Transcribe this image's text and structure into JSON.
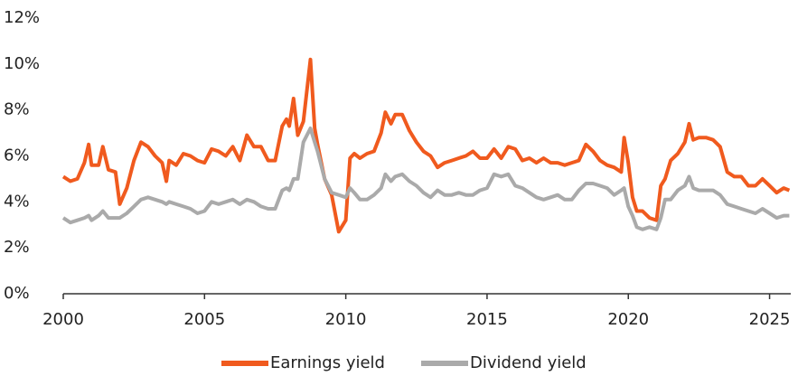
{
  "chart_data": {
    "type": "line",
    "x": [
      2000.0,
      2000.25,
      2000.5,
      2000.75,
      2000.9,
      2001.0,
      2001.25,
      2001.4,
      2001.6,
      2001.85,
      2002.0,
      2002.25,
      2002.5,
      2002.75,
      2003.0,
      2003.25,
      2003.5,
      2003.65,
      2003.75,
      2004.0,
      2004.25,
      2004.5,
      2004.75,
      2005.0,
      2005.25,
      2005.5,
      2005.75,
      2006.0,
      2006.25,
      2006.5,
      2006.75,
      2007.0,
      2007.25,
      2007.5,
      2007.75,
      2007.9,
      2008.0,
      2008.15,
      2008.3,
      2008.5,
      2008.75,
      2008.9,
      2009.0,
      2009.25,
      2009.5,
      2009.75,
      2010.0,
      2010.15,
      2010.3,
      2010.5,
      2010.75,
      2011.0,
      2011.25,
      2011.4,
      2011.6,
      2011.75,
      2012.0,
      2012.25,
      2012.5,
      2012.75,
      2013.0,
      2013.25,
      2013.5,
      2013.75,
      2014.0,
      2014.25,
      2014.5,
      2014.75,
      2015.0,
      2015.25,
      2015.5,
      2015.75,
      2016.0,
      2016.25,
      2016.5,
      2016.75,
      2017.0,
      2017.25,
      2017.5,
      2017.75,
      2018.0,
      2018.25,
      2018.5,
      2018.75,
      2019.0,
      2019.25,
      2019.5,
      2019.75,
      2019.85,
      2020.0,
      2020.15,
      2020.3,
      2020.5,
      2020.75,
      2021.0,
      2021.15,
      2021.3,
      2021.5,
      2021.75,
      2022.0,
      2022.15,
      2022.3,
      2022.5,
      2022.75,
      2023.0,
      2023.25,
      2023.5,
      2023.75,
      2024.0,
      2024.25,
      2024.5,
      2024.75,
      2025.0,
      2025.25,
      2025.5,
      2025.7
    ],
    "series": [
      {
        "name": "Earnings yield",
        "color": "#f05a1e",
        "values": [
          5.1,
          4.9,
          5.0,
          5.7,
          6.5,
          5.6,
          5.6,
          6.4,
          5.4,
          5.3,
          3.9,
          4.6,
          5.8,
          6.6,
          6.4,
          6.0,
          5.7,
          4.9,
          5.8,
          5.6,
          6.1,
          6.0,
          5.8,
          5.7,
          6.3,
          6.2,
          6.0,
          6.4,
          5.8,
          6.9,
          6.4,
          6.4,
          5.8,
          5.8,
          7.3,
          7.6,
          7.3,
          8.5,
          6.9,
          7.5,
          10.2,
          7.2,
          6.5,
          5.0,
          4.3,
          2.7,
          3.2,
          5.9,
          6.1,
          5.9,
          6.1,
          6.2,
          7.0,
          7.9,
          7.4,
          7.8,
          7.8,
          7.1,
          6.6,
          6.2,
          6.0,
          5.5,
          5.7,
          5.8,
          5.9,
          6.0,
          6.2,
          5.9,
          5.9,
          6.3,
          5.9,
          6.4,
          6.3,
          5.8,
          5.9,
          5.7,
          5.9,
          5.7,
          5.7,
          5.6,
          5.7,
          5.8,
          6.5,
          6.2,
          5.8,
          5.6,
          5.5,
          5.3,
          6.8,
          5.7,
          4.2,
          3.6,
          3.6,
          3.3,
          3.2,
          4.7,
          5.0,
          5.8,
          6.1,
          6.6,
          7.4,
          6.7,
          6.8,
          6.8,
          6.7,
          6.4,
          5.3,
          5.1,
          5.1,
          4.7,
          4.7,
          5.0,
          4.7,
          4.4,
          4.6,
          4.5
        ]
      },
      {
        "name": "Dividend yield",
        "color": "#aaaaaa",
        "values": [
          3.3,
          3.1,
          3.2,
          3.3,
          3.4,
          3.2,
          3.4,
          3.6,
          3.3,
          3.3,
          3.3,
          3.5,
          3.8,
          4.1,
          4.2,
          4.1,
          4.0,
          3.9,
          4.0,
          3.9,
          3.8,
          3.7,
          3.5,
          3.6,
          4.0,
          3.9,
          4.0,
          4.1,
          3.9,
          4.1,
          4.0,
          3.8,
          3.7,
          3.7,
          4.5,
          4.6,
          4.5,
          5.0,
          5.0,
          6.6,
          7.2,
          6.6,
          6.2,
          5.0,
          4.4,
          4.3,
          4.2,
          4.6,
          4.4,
          4.1,
          4.1,
          4.3,
          4.6,
          5.2,
          4.9,
          5.1,
          5.2,
          4.9,
          4.7,
          4.4,
          4.2,
          4.5,
          4.3,
          4.3,
          4.4,
          4.3,
          4.3,
          4.5,
          4.6,
          5.2,
          5.1,
          5.2,
          4.7,
          4.6,
          4.4,
          4.2,
          4.1,
          4.2,
          4.3,
          4.1,
          4.1,
          4.5,
          4.8,
          4.8,
          4.7,
          4.6,
          4.3,
          4.5,
          4.6,
          3.8,
          3.4,
          2.9,
          2.8,
          2.9,
          2.8,
          3.3,
          4.1,
          4.1,
          4.5,
          4.7,
          5.1,
          4.6,
          4.5,
          4.5,
          4.5,
          4.3,
          3.9,
          3.8,
          3.7,
          3.6,
          3.5,
          3.7,
          3.5,
          3.3,
          3.4,
          3.4
        ]
      }
    ],
    "xlim": [
      2000,
      2025.75
    ],
    "xticks": [
      2000,
      2005,
      2010,
      2015,
      2020,
      2025
    ],
    "ylim": [
      0,
      12
    ],
    "yticks": [
      {
        "value": 0,
        "label": "0%"
      },
      {
        "value": 2,
        "label": "2%"
      },
      {
        "value": 4,
        "label": "4%"
      },
      {
        "value": 6,
        "label": "6%"
      },
      {
        "value": 8,
        "label": "8%"
      },
      {
        "value": 10,
        "label": "10%"
      },
      {
        "value": 12,
        "label": "12%"
      }
    ],
    "grid": false,
    "legend": "bottom"
  }
}
